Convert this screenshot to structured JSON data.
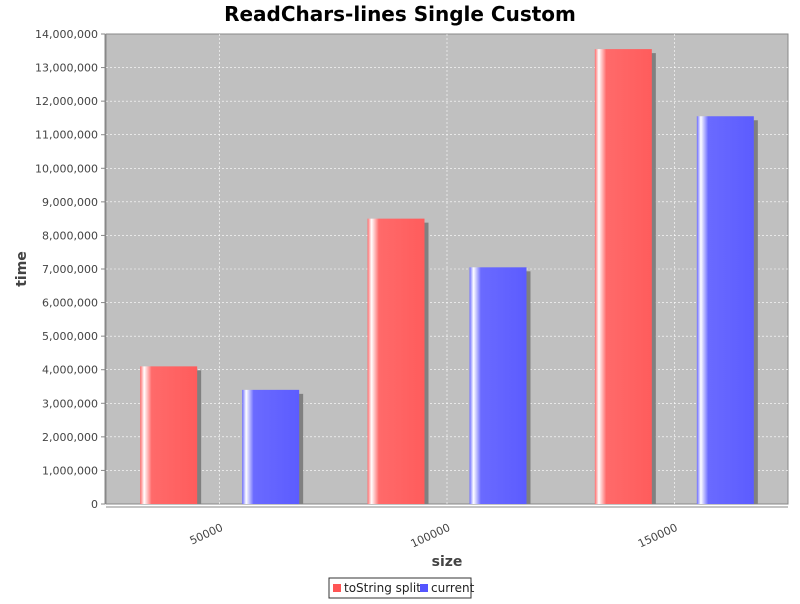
{
  "chart_data": {
    "type": "bar",
    "title": "ReadChars-lines Single Custom",
    "xlabel": "size",
    "ylabel": "time",
    "categories": [
      "50000",
      "100000",
      "150000"
    ],
    "series": [
      {
        "name": "toString split",
        "values": [
          4100000,
          8500000,
          13550000
        ],
        "color": "#ff5555"
      },
      {
        "name": "current",
        "values": [
          3400000,
          7050000,
          11550000
        ],
        "color": "#5555ff"
      }
    ],
    "ylim": [
      0,
      14000000
    ],
    "yticks": [
      0,
      1000000,
      2000000,
      3000000,
      4000000,
      5000000,
      6000000,
      7000000,
      8000000,
      9000000,
      10000000,
      11000000,
      12000000,
      13000000,
      14000000
    ],
    "ytick_labels": [
      "0",
      "1,000,000",
      "2,000,000",
      "3,000,000",
      "4,000,000",
      "5,000,000",
      "6,000,000",
      "7,000,000",
      "8,000,000",
      "9,000,000",
      "10,000,000",
      "11,000,000",
      "12,000,000",
      "13,000,000",
      "14,000,000"
    ],
    "grid": true,
    "legend_position": "bottom-center",
    "plot_background": "#c0c0c0"
  }
}
